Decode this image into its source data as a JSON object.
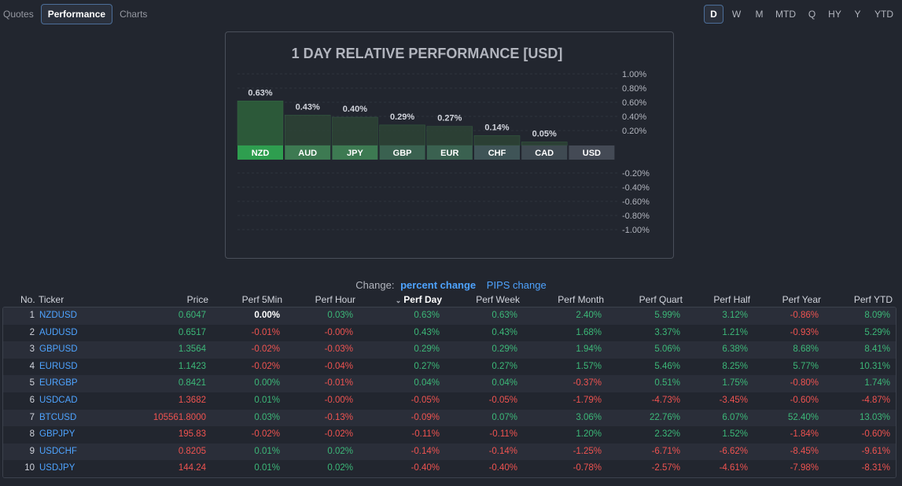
{
  "nav": {
    "tabs": [
      "Quotes",
      "Performance",
      "Charts"
    ],
    "active_tab": "Performance",
    "periods": [
      "D",
      "W",
      "M",
      "MTD",
      "Q",
      "HY",
      "Y",
      "YTD"
    ],
    "active_period": "D"
  },
  "chart_data": {
    "type": "bar",
    "title": "1 DAY RELATIVE PERFORMANCE  [USD]",
    "categories": [
      "NZD",
      "AUD",
      "JPY",
      "GBP",
      "EUR",
      "CHF",
      "CAD",
      "USD"
    ],
    "values": [
      0.63,
      0.43,
      0.4,
      0.29,
      0.27,
      0.14,
      0.05,
      0.0
    ],
    "value_labels": [
      "0.63%",
      "0.43%",
      "0.40%",
      "0.29%",
      "0.27%",
      "0.14%",
      "0.05%",
      ""
    ],
    "y_ticks_pos": [
      "1.00%",
      "0.80%",
      "0.60%",
      "0.40%",
      "0.20%"
    ],
    "y_ticks_neg": [
      "-0.20%",
      "-0.40%",
      "-0.60%",
      "-0.80%",
      "-1.00%"
    ],
    "ylim": [
      -1.0,
      1.0
    ],
    "label_colors": [
      "#2e9e4f",
      "#3d7a52",
      "#3d7a52",
      "#3a6150",
      "#3a6150",
      "#3f5457",
      "#3f4a52",
      "#444a55"
    ]
  },
  "change": {
    "label": "Change:",
    "active": "percent change",
    "other": "PIPS change"
  },
  "table": {
    "headers": [
      "No.",
      "Ticker",
      "Price",
      "Perf 5Min",
      "Perf Hour",
      "Perf Day",
      "Perf Week",
      "Perf Month",
      "Perf Quart",
      "Perf Half",
      "Perf Year",
      "Perf YTD"
    ],
    "sorted_column": "Perf Day",
    "rows": [
      {
        "no": "1",
        "ticker": "NZDUSD",
        "price": "0.6047",
        "perf": [
          "0.00%",
          "0.03%",
          "0.63%",
          "0.63%",
          "2.40%",
          "5.99%",
          "3.12%",
          "-0.86%",
          "8.09%"
        ]
      },
      {
        "no": "2",
        "ticker": "AUDUSD",
        "price": "0.6517",
        "perf": [
          "-0.01%",
          "-0.00%",
          "0.43%",
          "0.43%",
          "1.68%",
          "3.37%",
          "1.21%",
          "-0.93%",
          "5.29%"
        ]
      },
      {
        "no": "3",
        "ticker": "GBPUSD",
        "price": "1.3564",
        "perf": [
          "-0.02%",
          "-0.03%",
          "0.29%",
          "0.29%",
          "1.94%",
          "5.06%",
          "6.38%",
          "8.68%",
          "8.41%"
        ]
      },
      {
        "no": "4",
        "ticker": "EURUSD",
        "price": "1.1423",
        "perf": [
          "-0.02%",
          "-0.04%",
          "0.27%",
          "0.27%",
          "1.57%",
          "5.46%",
          "8.25%",
          "5.77%",
          "10.31%"
        ]
      },
      {
        "no": "5",
        "ticker": "EURGBP",
        "price": "0.8421",
        "perf": [
          "0.00%",
          "-0.01%",
          "0.04%",
          "0.04%",
          "-0.37%",
          "0.51%",
          "1.75%",
          "-0.80%",
          "1.74%"
        ]
      },
      {
        "no": "6",
        "ticker": "USDCAD",
        "price": "1.3682",
        "perf": [
          "0.01%",
          "-0.00%",
          "-0.05%",
          "-0.05%",
          "-1.79%",
          "-4.73%",
          "-3.45%",
          "-0.60%",
          "-4.87%"
        ]
      },
      {
        "no": "7",
        "ticker": "BTCUSD",
        "price": "105561.8000",
        "perf": [
          "0.03%",
          "-0.13%",
          "-0.09%",
          "0.07%",
          "3.06%",
          "22.76%",
          "6.07%",
          "52.40%",
          "13.03%"
        ]
      },
      {
        "no": "8",
        "ticker": "GBPJPY",
        "price": "195.83",
        "perf": [
          "-0.02%",
          "-0.02%",
          "-0.11%",
          "-0.11%",
          "1.20%",
          "2.32%",
          "1.52%",
          "-1.84%",
          "-0.60%"
        ]
      },
      {
        "no": "9",
        "ticker": "USDCHF",
        "price": "0.8205",
        "perf": [
          "0.01%",
          "0.02%",
          "-0.14%",
          "-0.14%",
          "-1.25%",
          "-6.71%",
          "-6.62%",
          "-8.45%",
          "-9.61%"
        ]
      },
      {
        "no": "10",
        "ticker": "USDJPY",
        "price": "144.24",
        "perf": [
          "0.01%",
          "0.02%",
          "-0.40%",
          "-0.40%",
          "-0.78%",
          "-2.57%",
          "-4.61%",
          "-7.98%",
          "-8.31%"
        ]
      }
    ],
    "price_colors": [
      "pos",
      "pos",
      "pos",
      "pos",
      "pos",
      "neg",
      "neg",
      "neg",
      "neg",
      "neg"
    ]
  }
}
